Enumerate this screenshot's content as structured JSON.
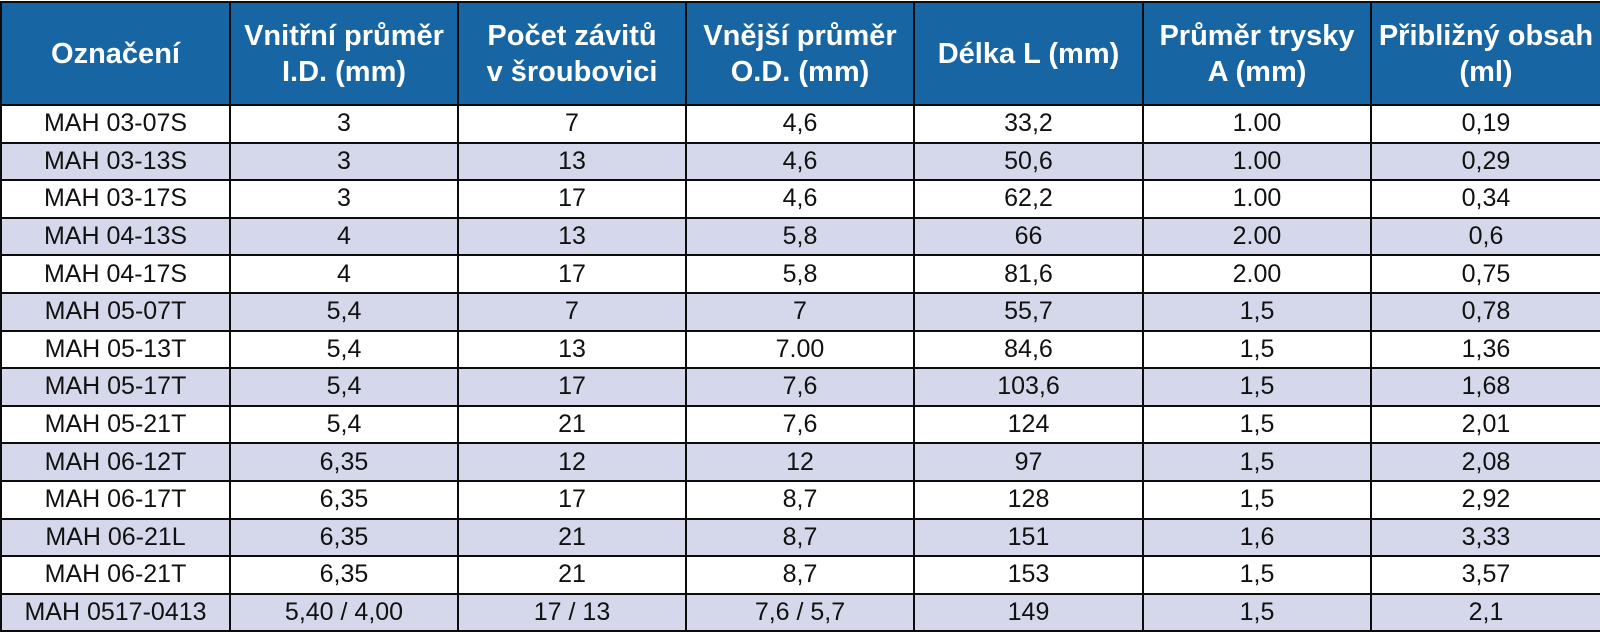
{
  "table": {
    "headers": [
      "Označení",
      "Vnitřní průměr\nI.D. (mm)",
      "Počet závitů\nv šroubovici",
      "Vnější průměr\nO.D. (mm)",
      "Délka L (mm)",
      "Průměr trysky\nA (mm)",
      "Přibližný obsah\n(ml)"
    ],
    "rows": [
      [
        "MAH 03-07S",
        "3",
        "7",
        "4,6",
        "33,2",
        "1.00",
        "0,19"
      ],
      [
        "MAH 03-13S",
        "3",
        "13",
        "4,6",
        "50,6",
        "1.00",
        "0,29"
      ],
      [
        "MAH 03-17S",
        "3",
        "17",
        "4,6",
        "62,2",
        "1.00",
        "0,34"
      ],
      [
        "MAH 04-13S",
        "4",
        "13",
        "5,8",
        "66",
        "2.00",
        "0,6"
      ],
      [
        "MAH 04-17S",
        "4",
        "17",
        "5,8",
        "81,6",
        "2.00",
        "0,75"
      ],
      [
        "MAH 05-07T",
        "5,4",
        "7",
        "7",
        "55,7",
        "1,5",
        "0,78"
      ],
      [
        "MAH 05-13T",
        "5,4",
        "13",
        "7.00",
        "84,6",
        "1,5",
        "1,36"
      ],
      [
        "MAH 05-17T",
        "5,4",
        "17",
        "7,6",
        "103,6",
        "1,5",
        "1,68"
      ],
      [
        "MAH 05-21T",
        "5,4",
        "21",
        "7,6",
        "124",
        "1,5",
        "2,01"
      ],
      [
        "MAH 06-12T",
        "6,35",
        "12",
        "12",
        "97",
        "1,5",
        "2,08"
      ],
      [
        "MAH 06-17T",
        "6,35",
        "17",
        "8,7",
        "128",
        "1,5",
        "2,92"
      ],
      [
        "MAH 06-21L",
        "6,35",
        "21",
        "8,7",
        "151",
        "1,6",
        "3,33"
      ],
      [
        "MAH 06-21T",
        "6,35",
        "21",
        "8,7",
        "153",
        "1,5",
        "3,57"
      ],
      [
        "MAH 0517-0413",
        "5,40 / 4,00",
        "17 / 13",
        "7,6 / 5,7",
        "149",
        "1,5",
        "2,1"
      ]
    ]
  },
  "colors": {
    "header_background": "#1765a3",
    "header_text": "#ffffff",
    "row_alternate_background": "#d4d8ea",
    "row_background": "#ffffff",
    "border": "#0c0c0c"
  }
}
